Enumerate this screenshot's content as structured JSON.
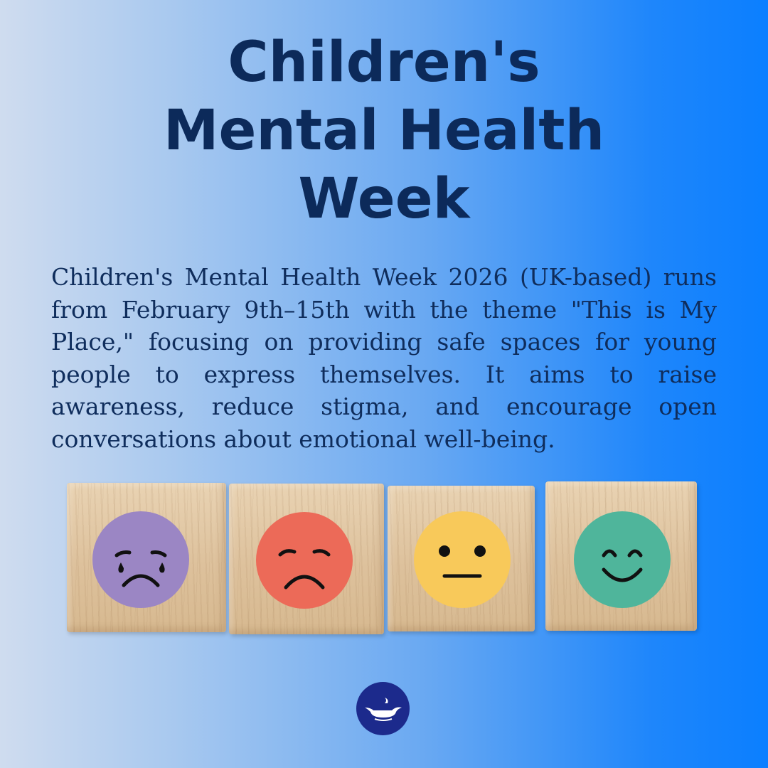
{
  "title": {
    "line1": "Children's",
    "line2": "Mental Health",
    "line3": "Week"
  },
  "description": "Children's Mental Health Week 2026 (UK-based) runs from February 9th–15th with the theme \"This is My Place,\" focusing on providing safe spaces for young people to express themselves. It aims to raise awareness, reduce stigma, and encourage open conversations about emotional well-being.",
  "blocks": [
    {
      "icon": "crying-face-icon",
      "color": "#9b86c4"
    },
    {
      "icon": "sad-face-icon",
      "color": "#ec6a58"
    },
    {
      "icon": "neutral-face-icon",
      "color": "#f8c95a"
    },
    {
      "icon": "happy-face-icon",
      "color": "#4fb59b"
    }
  ],
  "colors": {
    "title": "#0c2a5a",
    "text": "#0f2d5c",
    "logo_bg": "#1c2a8c"
  },
  "logo": {
    "icon": "lamp-logo-icon"
  }
}
